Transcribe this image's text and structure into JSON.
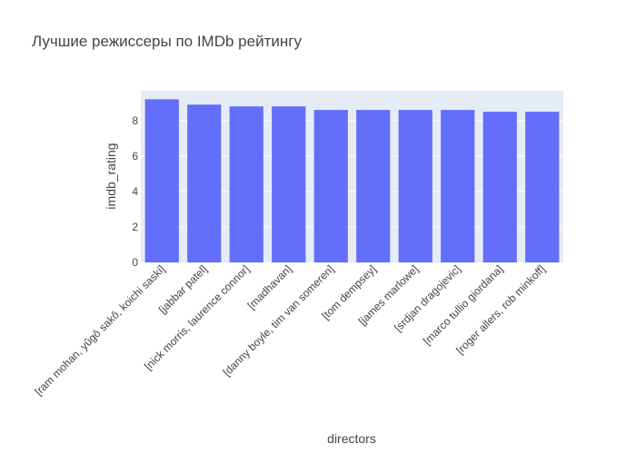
{
  "chart_data": {
    "type": "bar",
    "title": "Лучшие режиссеры по IMDb рейтингу",
    "xlabel": "directors",
    "ylabel": "imdb_rating",
    "categories": [
      "[ram mohan, yûgô sakô, koichi saski]",
      "[jabbar patel]",
      "[nick morris, laurence connor]",
      "[madhavan]",
      "[danny boyle, tim van someren]",
      "[tom dempsey]",
      "[james marlowe]",
      "[srdjan dragojevic]",
      "[marco tullio giordana]",
      "[roger allers, rob minkoff]"
    ],
    "values": [
      9.2,
      8.9,
      8.8,
      8.8,
      8.6,
      8.6,
      8.6,
      8.6,
      8.5,
      8.5
    ],
    "ylim": [
      0,
      9.68
    ],
    "yticks": [
      0,
      2,
      4,
      6,
      8
    ],
    "grid": true,
    "colors": {
      "bar": "#636efa",
      "plot_bg": "#e5ecf6",
      "grid": "#ffffff",
      "text": "#444444"
    }
  }
}
